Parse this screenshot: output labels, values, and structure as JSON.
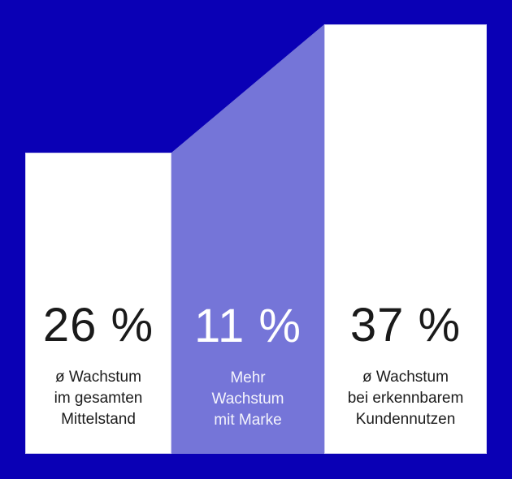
{
  "colors": {
    "background": "#0a00b5",
    "accent_purple": "#7575d8",
    "bar_white": "#ffffff",
    "text_dark": "#1a1a1a",
    "text_light": "#ffffff"
  },
  "chart_data": {
    "type": "bar",
    "subtype": "bridge-infographic",
    "categories": [
      "ø Wachstum im gesamten Mittelstand",
      "Mehr Wachstum mit Marke",
      "ø Wachstum bei erkennbarem Kundennutzen"
    ],
    "values": [
      26,
      11,
      37
    ],
    "unit": "%",
    "title": "",
    "xlabel": "",
    "ylabel": "",
    "legend": false,
    "bar_colors": [
      "#ffffff",
      "#7575d8",
      "#ffffff"
    ],
    "layout_note": "middle purple bar is a connector with diagonal top bridging left bar (26%) to taller right bar (37%)"
  },
  "bars": [
    {
      "value": "26 %",
      "label": "ø Wachstum\nim gesamten\nMittelstand"
    },
    {
      "value": "11 %",
      "label": "Mehr\nWachstum\nmit Marke"
    },
    {
      "value": "37 %",
      "label": "ø Wachstum\nbei erkennbarem\nKundennutzen"
    }
  ]
}
